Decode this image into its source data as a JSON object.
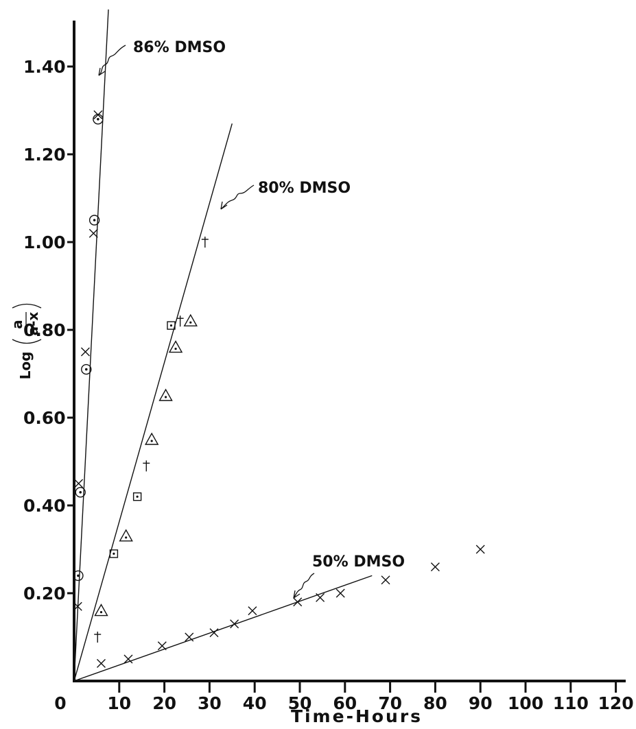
{
  "chart_data": {
    "type": "scatter",
    "title": "",
    "xlabel": "Time-Hours",
    "ylabel": {
      "prefix": "Log",
      "numerator": "a",
      "denominator": "a-x"
    },
    "xlim": [
      0,
      120
    ],
    "ylim": [
      0,
      1.4
    ],
    "x_ticks": [
      0,
      10,
      20,
      30,
      40,
      50,
      60,
      70,
      80,
      90,
      100,
      110,
      120
    ],
    "x_tick_labels": [
      "0",
      "10",
      "20",
      "30",
      "40",
      "50",
      "60",
      "70",
      "80",
      "90",
      "100",
      "110",
      "120"
    ],
    "y_ticks": [
      0.2,
      0.4,
      0.6,
      0.8,
      1.0,
      1.2,
      1.4
    ],
    "y_tick_labels": [
      "0.20",
      "0.40",
      "0.60",
      "0.80",
      "1.00",
      "1.20",
      "1.40"
    ],
    "grid": false,
    "annotations": [
      "86% DMSO",
      "80% DMSO",
      "50% DMSO"
    ],
    "fit_lines": [
      {
        "label": "86% DMSO",
        "x": [
          0,
          7.6
        ],
        "y": [
          0,
          1.53
        ]
      },
      {
        "label": "80% DMSO",
        "x": [
          0,
          35
        ],
        "y": [
          0,
          1.27
        ]
      },
      {
        "label": "50% DMSO",
        "x": [
          0,
          66
        ],
        "y": [
          0,
          0.24
        ]
      }
    ],
    "series": [
      {
        "group": "86% DMSO",
        "marker": "cross",
        "points": [
          {
            "x": 0.8,
            "y": 0.17
          },
          {
            "x": 1.0,
            "y": 0.45
          },
          {
            "x": 2.5,
            "y": 0.75
          },
          {
            "x": 4.3,
            "y": 1.02
          },
          {
            "x": 5.3,
            "y": 1.29
          }
        ]
      },
      {
        "group": "86% DMSO",
        "marker": "circle-dot",
        "points": [
          {
            "x": 0.9,
            "y": 0.24
          },
          {
            "x": 1.4,
            "y": 0.43
          },
          {
            "x": 2.7,
            "y": 0.71
          },
          {
            "x": 4.5,
            "y": 1.05
          },
          {
            "x": 5.3,
            "y": 1.28
          }
        ]
      },
      {
        "group": "80% DMSO",
        "marker": "triangle-dot",
        "points": [
          {
            "x": 6.0,
            "y": 0.16
          },
          {
            "x": 11.5,
            "y": 0.33
          },
          {
            "x": 17.2,
            "y": 0.55
          },
          {
            "x": 20.3,
            "y": 0.65
          },
          {
            "x": 22.5,
            "y": 0.76
          },
          {
            "x": 25.8,
            "y": 0.82
          }
        ]
      },
      {
        "group": "80% DMSO",
        "marker": "square-dot",
        "points": [
          {
            "x": 8.8,
            "y": 0.29
          },
          {
            "x": 14.0,
            "y": 0.42
          },
          {
            "x": 21.5,
            "y": 0.81
          }
        ]
      },
      {
        "group": "80% DMSO",
        "marker": "dagger",
        "points": [
          {
            "x": 5.2,
            "y": 0.1
          },
          {
            "x": 16.0,
            "y": 0.49
          },
          {
            "x": 23.5,
            "y": 0.82
          },
          {
            "x": 29.0,
            "y": 1.0
          }
        ]
      },
      {
        "group": "50% DMSO",
        "marker": "cross",
        "points": [
          {
            "x": 6.0,
            "y": 0.04
          },
          {
            "x": 12.0,
            "y": 0.05
          },
          {
            "x": 19.5,
            "y": 0.08
          },
          {
            "x": 25.5,
            "y": 0.1
          },
          {
            "x": 31.0,
            "y": 0.11
          },
          {
            "x": 35.5,
            "y": 0.13
          },
          {
            "x": 39.5,
            "y": 0.16
          },
          {
            "x": 49.5,
            "y": 0.18
          },
          {
            "x": 54.5,
            "y": 0.19
          },
          {
            "x": 59.0,
            "y": 0.2
          },
          {
            "x": 69.0,
            "y": 0.23
          },
          {
            "x": 80.0,
            "y": 0.26
          },
          {
            "x": 90.0,
            "y": 0.3
          }
        ]
      }
    ]
  }
}
